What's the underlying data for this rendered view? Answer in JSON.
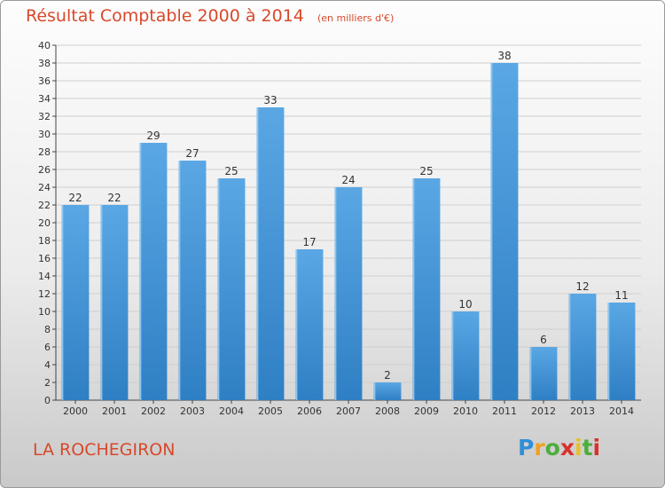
{
  "chart_data": {
    "type": "bar",
    "title": "Résultat Comptable 2000 à 2014",
    "subtitle": "(en milliers d'€)",
    "categories": [
      "2000",
      "2001",
      "2002",
      "2003",
      "2004",
      "2005",
      "2006",
      "2007",
      "2008",
      "2009",
      "2010",
      "2011",
      "2012",
      "2013",
      "2014"
    ],
    "values": [
      22,
      22,
      29,
      27,
      25,
      33,
      17,
      24,
      2,
      25,
      10,
      38,
      6,
      12,
      11
    ],
    "ylim": [
      0,
      40
    ],
    "yticks": [
      0,
      2,
      4,
      6,
      8,
      10,
      12,
      14,
      16,
      18,
      20,
      22,
      24,
      26,
      28,
      30,
      32,
      34,
      36,
      38,
      40
    ],
    "grid": true,
    "bar_color": "#5aa7e4",
    "bar_color_dark": "#2f7fc4"
  },
  "commune": "LA ROCHEGIRON",
  "logo": {
    "letters": [
      "P",
      "r",
      "o",
      "x",
      "i",
      "t",
      "i"
    ],
    "colors": [
      "#2f8fd8",
      "#f0a020",
      "#4cae3c",
      "#d9302b",
      "#e8c020",
      "#4cae3c",
      "#d9302b"
    ]
  }
}
